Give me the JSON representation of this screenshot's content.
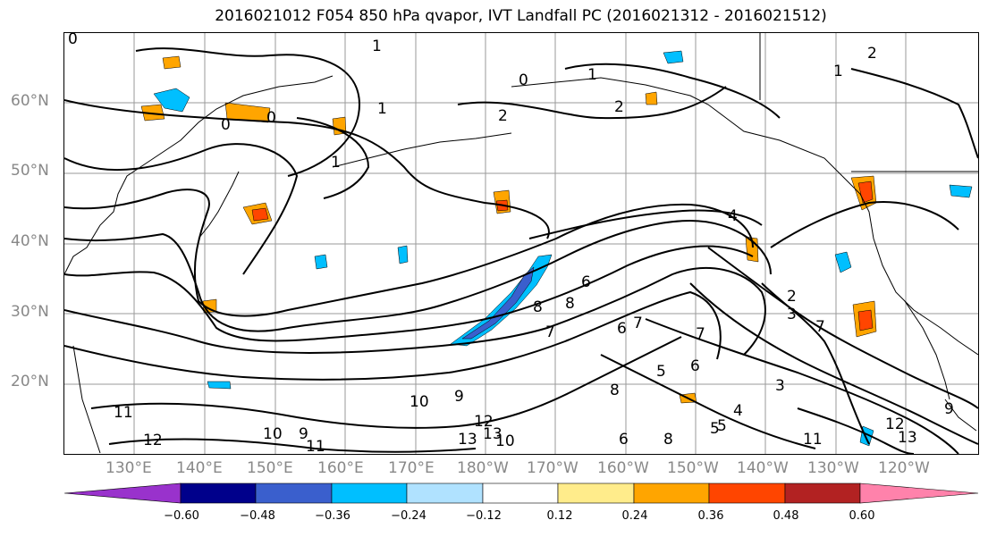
{
  "title": "2016021012 F054 850 hPa qvapor, IVT Landfall PC (2016021312 - 2016021512)",
  "lat_labels": [
    "60°N",
    "50°N",
    "40°N",
    "30°N",
    "20°N"
  ],
  "lon_labels": [
    "130°E",
    "140°E",
    "150°E",
    "160°E",
    "170°E",
    "180°W",
    "170°W",
    "160°W",
    "150°W",
    "140°W",
    "130°W",
    "120°W"
  ],
  "colorbar": {
    "ticks": [
      "−0.60",
      "−0.48",
      "−0.36",
      "−0.24",
      "−0.12",
      "0.12",
      "0.24",
      "0.36",
      "0.48",
      "0.60"
    ],
    "colors": [
      "#9932cc",
      "#00008b",
      "#3a5fcd",
      "#00bfff",
      "#b0e2ff",
      "#ffffff",
      "#ffec8b",
      "#ffa500",
      "#ff4500",
      "#b22222",
      "#ff82ab"
    ]
  },
  "contour_labels": [
    "0",
    "1",
    "2",
    "1",
    "0",
    "2",
    "1",
    "0",
    "0",
    "1",
    "2",
    "4",
    "2",
    "1",
    "3",
    "6",
    "7",
    "8",
    "6",
    "5",
    "4",
    "3",
    "5",
    "6",
    "7",
    "8",
    "9",
    "10",
    "11",
    "12",
    "13",
    "9",
    "10",
    "11",
    "12",
    "13",
    "10",
    "11",
    "12",
    "13",
    "7",
    "8",
    "6",
    "5",
    "7",
    "8",
    "9"
  ],
  "units_colors": {
    "contour": "#000000",
    "grid": "#9a9a9a",
    "coast": "#000000"
  }
}
